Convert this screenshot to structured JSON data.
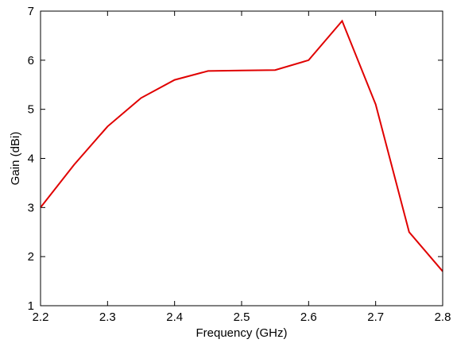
{
  "chart_data": {
    "type": "line",
    "title": "",
    "xlabel": "Frequency (GHz)",
    "ylabel": "Gain (dBi)",
    "xlim": [
      2.2,
      2.8
    ],
    "ylim": [
      1,
      7
    ],
    "xticks": [
      "2.2",
      "2.3",
      "2.4",
      "2.5",
      "2.6",
      "2.7",
      "2.8"
    ],
    "yticks": [
      "1",
      "2",
      "3",
      "4",
      "5",
      "6",
      "7"
    ],
    "grid": false,
    "legend": "none",
    "line_color": "#e00000",
    "series": [
      {
        "x": [
          2.2,
          2.25,
          2.3,
          2.35,
          2.4,
          2.45,
          2.5,
          2.55,
          2.6,
          2.65,
          2.7,
          2.75,
          2.8
        ],
        "y": [
          3.0,
          3.87,
          4.65,
          5.23,
          5.6,
          5.78,
          5.79,
          5.8,
          6.0,
          6.8,
          5.1,
          2.5,
          1.7
        ]
      }
    ]
  }
}
